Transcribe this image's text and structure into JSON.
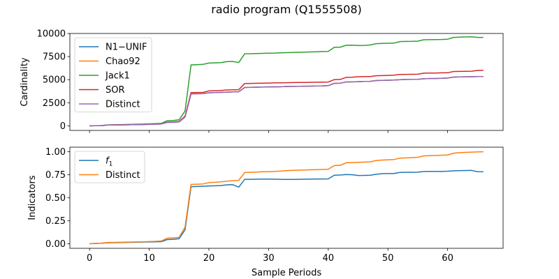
{
  "title": "radio program (Q1555508)",
  "chart_data": [
    {
      "type": "line",
      "title": "",
      "xlabel": "",
      "ylabel": "Cardinality",
      "xlim": [
        -3.3,
        69.3
      ],
      "ylim": [
        -500,
        10000
      ],
      "xticks": [
        0,
        10,
        20,
        30,
        40,
        50,
        60
      ],
      "xtick_labels": [],
      "yticks": [
        0,
        2500,
        5000,
        7500,
        10000
      ],
      "ytick_labels": [
        "0",
        "2500",
        "5000",
        "7500",
        "10000"
      ],
      "legend_position": "upper left",
      "x": [
        0,
        2,
        3,
        5,
        7,
        9,
        11,
        12,
        13,
        14,
        15,
        16,
        17,
        18,
        19,
        20,
        21,
        22,
        23,
        24,
        25,
        26,
        27,
        28,
        29,
        30,
        31,
        32,
        33,
        34,
        35,
        36,
        37,
        38,
        39,
        40,
        41,
        42,
        43,
        44,
        45,
        46,
        47,
        48,
        49,
        50,
        51,
        52,
        53,
        54,
        55,
        56,
        57,
        58,
        59,
        60,
        61,
        62,
        63,
        64,
        65,
        66
      ],
      "series": [
        {
          "name": "N1−UNIF",
          "color": "#1f77b4",
          "values": [
            0,
            20,
            80,
            100,
            120,
            140,
            180,
            200,
            370,
            390,
            420,
            950,
            3460,
            3470,
            3480,
            3580,
            3600,
            3620,
            3650,
            3680,
            3690,
            4150,
            4160,
            4180,
            4200,
            4210,
            4220,
            4230,
            4260,
            4270,
            4280,
            4290,
            4300,
            4320,
            4330,
            4350,
            4600,
            4620,
            4750,
            4760,
            4780,
            4800,
            4820,
            4900,
            4920,
            4940,
            4960,
            5000,
            5020,
            5030,
            5040,
            5100,
            5120,
            5130,
            5150,
            5170,
            5280,
            5300,
            5310,
            5320,
            5330,
            5340
          ]
        },
        {
          "name": "Chao92",
          "color": "#ff7f0e",
          "values": [
            0,
            20,
            80,
            100,
            120,
            140,
            180,
            200,
            370,
            390,
            420,
            950,
            3460,
            3470,
            3480,
            3580,
            3600,
            3620,
            3650,
            3680,
            3690,
            4150,
            4160,
            4180,
            4200,
            4210,
            4220,
            4230,
            4260,
            4270,
            4280,
            4290,
            4300,
            4320,
            4330,
            4350,
            4600,
            4620,
            4750,
            4760,
            4780,
            4800,
            4820,
            4900,
            4920,
            4940,
            4960,
            5000,
            5020,
            5030,
            5040,
            5100,
            5120,
            5130,
            5150,
            5170,
            5280,
            5300,
            5310,
            5320,
            5330,
            5340
          ]
        },
        {
          "name": "Jack1",
          "color": "#2ca02c",
          "values": [
            0,
            30,
            100,
            130,
            160,
            190,
            230,
            260,
            550,
            580,
            650,
            1600,
            6600,
            6620,
            6650,
            6800,
            6820,
            6850,
            6950,
            6970,
            6850,
            7800,
            7810,
            7830,
            7850,
            7870,
            7880,
            7900,
            7920,
            7940,
            7960,
            7980,
            8000,
            8020,
            8040,
            8050,
            8500,
            8520,
            8720,
            8730,
            8700,
            8710,
            8750,
            8900,
            8920,
            8940,
            8960,
            9120,
            9140,
            9150,
            9170,
            9320,
            9330,
            9340,
            9350,
            9380,
            9580,
            9600,
            9620,
            9640,
            9580,
            9580
          ]
        },
        {
          "name": "SOR",
          "color": "#d62728",
          "values": [
            0,
            25,
            90,
            110,
            130,
            150,
            190,
            210,
            400,
            420,
            460,
            1050,
            3600,
            3610,
            3620,
            3780,
            3800,
            3820,
            3880,
            3900,
            3920,
            4580,
            4590,
            4610,
            4620,
            4630,
            4650,
            4660,
            4670,
            4680,
            4690,
            4700,
            4710,
            4720,
            4730,
            4740,
            5000,
            5020,
            5250,
            5260,
            5320,
            5330,
            5340,
            5420,
            5440,
            5460,
            5480,
            5560,
            5570,
            5580,
            5590,
            5700,
            5710,
            5720,
            5740,
            5750,
            5880,
            5890,
            5900,
            5910,
            6000,
            6010
          ]
        },
        {
          "name": "Distinct",
          "color": "#9467bd",
          "values": [
            0,
            20,
            80,
            100,
            120,
            140,
            180,
            200,
            370,
            390,
            420,
            950,
            3460,
            3470,
            3480,
            3580,
            3600,
            3620,
            3650,
            3680,
            3690,
            4150,
            4160,
            4180,
            4200,
            4210,
            4220,
            4230,
            4260,
            4270,
            4280,
            4290,
            4300,
            4320,
            4330,
            4350,
            4600,
            4620,
            4750,
            4760,
            4780,
            4800,
            4820,
            4900,
            4920,
            4940,
            4960,
            5000,
            5020,
            5030,
            5040,
            5100,
            5120,
            5130,
            5150,
            5170,
            5280,
            5300,
            5310,
            5320,
            5330,
            5340
          ]
        }
      ]
    },
    {
      "type": "line",
      "title": "",
      "xlabel": "Sample Periods",
      "ylabel": "Indicators",
      "xlim": [
        -3.3,
        69.3
      ],
      "ylim": [
        -0.05,
        1.05
      ],
      "xticks": [
        0,
        10,
        20,
        30,
        40,
        50,
        60
      ],
      "xtick_labels": [
        "0",
        "10",
        "20",
        "30",
        "40",
        "50",
        "60"
      ],
      "yticks": [
        0,
        0.25,
        0.5,
        0.75,
        1.0
      ],
      "ytick_labels": [
        "0.00",
        "0.25",
        "0.50",
        "0.75",
        "1.00"
      ],
      "legend_position": "upper left",
      "x": [
        0,
        2,
        3,
        5,
        7,
        9,
        11,
        12,
        13,
        14,
        15,
        16,
        17,
        18,
        19,
        20,
        21,
        22,
        23,
        24,
        25,
        26,
        27,
        28,
        29,
        30,
        31,
        32,
        33,
        34,
        35,
        36,
        37,
        38,
        39,
        40,
        41,
        42,
        43,
        44,
        45,
        46,
        47,
        48,
        49,
        50,
        51,
        52,
        53,
        54,
        55,
        56,
        57,
        58,
        59,
        60,
        61,
        62,
        63,
        64,
        65,
        66
      ],
      "series": [
        {
          "name": "f1",
          "color": "#1f77b4",
          "values": [
            0.0,
            0.005,
            0.01,
            0.013,
            0.015,
            0.018,
            0.02,
            0.022,
            0.045,
            0.048,
            0.055,
            0.15,
            0.62,
            0.622,
            0.625,
            0.628,
            0.63,
            0.633,
            0.64,
            0.642,
            0.615,
            0.7,
            0.7,
            0.702,
            0.703,
            0.703,
            0.702,
            0.7,
            0.699,
            0.699,
            0.7,
            0.702,
            0.703,
            0.704,
            0.704,
            0.705,
            0.745,
            0.747,
            0.752,
            0.75,
            0.742,
            0.743,
            0.745,
            0.755,
            0.762,
            0.763,
            0.763,
            0.775,
            0.777,
            0.777,
            0.778,
            0.785,
            0.786,
            0.786,
            0.787,
            0.788,
            0.793,
            0.795,
            0.796,
            0.797,
            0.784,
            0.783
          ]
        },
        {
          "name": "Distinct",
          "color": "#ff7f0e",
          "values": [
            0.0,
            0.006,
            0.012,
            0.015,
            0.018,
            0.021,
            0.026,
            0.03,
            0.06,
            0.063,
            0.07,
            0.18,
            0.645,
            0.647,
            0.65,
            0.665,
            0.668,
            0.672,
            0.68,
            0.685,
            0.69,
            0.775,
            0.777,
            0.779,
            0.782,
            0.784,
            0.787,
            0.79,
            0.795,
            0.797,
            0.8,
            0.802,
            0.804,
            0.806,
            0.808,
            0.81,
            0.85,
            0.853,
            0.88,
            0.882,
            0.885,
            0.888,
            0.89,
            0.905,
            0.91,
            0.913,
            0.916,
            0.93,
            0.933,
            0.936,
            0.94,
            0.955,
            0.958,
            0.96,
            0.963,
            0.966,
            0.985,
            0.99,
            0.993,
            0.996,
            0.999,
            1.0
          ]
        }
      ]
    }
  ]
}
